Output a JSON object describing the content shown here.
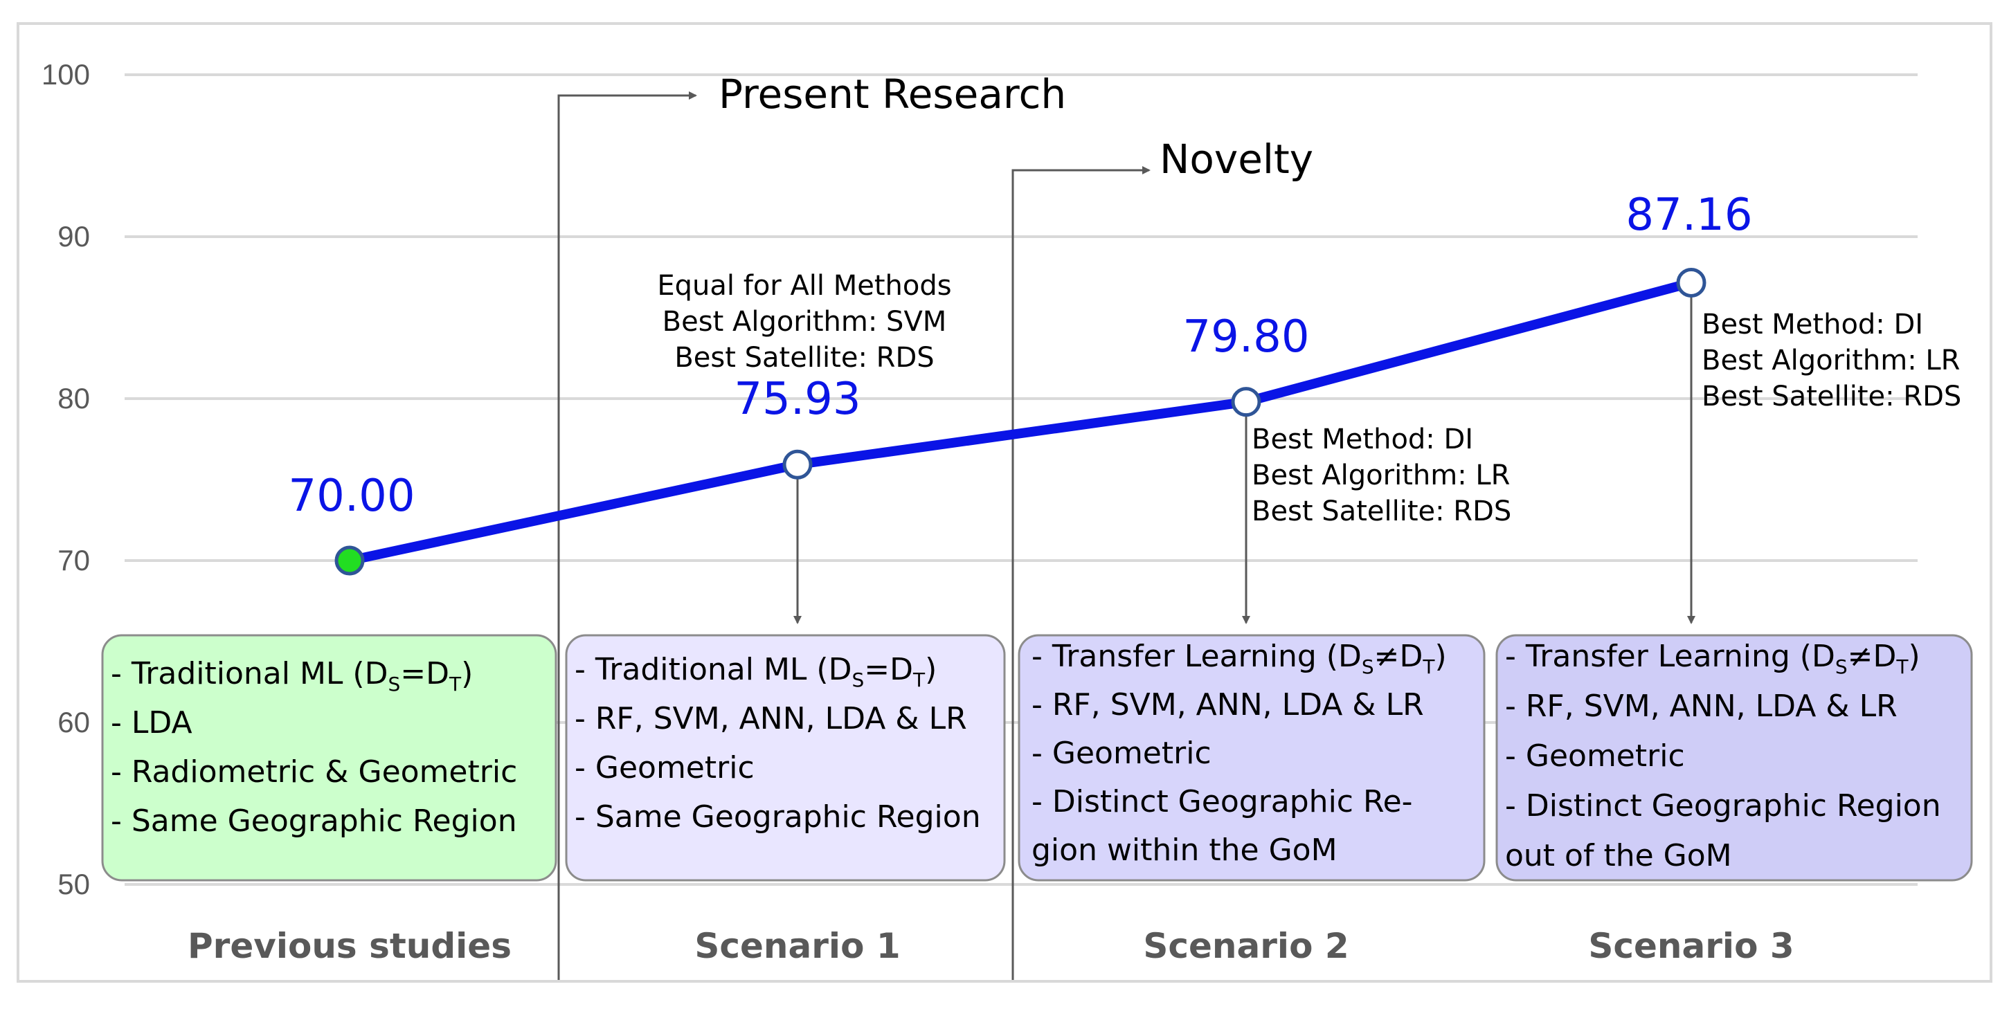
{
  "chart_data": {
    "type": "line",
    "categories": [
      "Previous studies",
      "Scenario 1",
      "Scenario 2",
      "Scenario 3"
    ],
    "values": [
      70.0,
      75.93,
      79.8,
      87.16
    ],
    "data_labels": [
      "70.00",
      "75.93",
      "79.80",
      "87.16"
    ],
    "yticks": [
      "100",
      "90",
      "80",
      "70",
      "60",
      "50"
    ],
    "ylim": [
      50,
      100
    ],
    "grid": true,
    "colors": {
      "line": "#0a14e6",
      "first_marker_fill": "#22dd22",
      "marker_fill": "#ffffff"
    },
    "callouts": [
      {
        "label": "Present Research"
      },
      {
        "label": "Novelty"
      }
    ],
    "annotations": [
      {
        "lines": [
          "Equal for All Methods",
          "Best Algorithm: SVM",
          "Best Satellite: RDS"
        ]
      },
      {
        "lines": [
          "Best Method: DI",
          "Best Algorithm: LR",
          "Best Satellite: RDS"
        ]
      },
      {
        "lines": [
          "Best Method: DI",
          "Best Algorithm: LR",
          "Best Satellite: RDS"
        ]
      }
    ],
    "boxes": [
      {
        "fill": "#ccffcc",
        "lines": [
          [
            [
              "- Traditional ML (D",
              ""
            ],
            [
              "S",
              "sub"
            ],
            [
              "=D",
              ""
            ],
            [
              "T",
              "sub"
            ],
            [
              ")",
              ""
            ]
          ],
          [
            [
              "- LDA",
              ""
            ]
          ],
          [
            [
              "- Radiometric & Geometric",
              ""
            ]
          ],
          [
            [
              "- Same Geographic Region",
              ""
            ]
          ]
        ]
      },
      {
        "fill": "#e9e6ff",
        "lines": [
          [
            [
              "- Traditional ML (D",
              ""
            ],
            [
              "S",
              "sub"
            ],
            [
              "=D",
              ""
            ],
            [
              "T",
              "sub"
            ],
            [
              ")",
              ""
            ]
          ],
          [
            [
              "- RF, SVM, ANN, LDA & LR",
              ""
            ]
          ],
          [
            [
              "- Geometric",
              ""
            ]
          ],
          [
            [
              "- Same Geographic Region",
              ""
            ]
          ]
        ]
      },
      {
        "fill": "#d7d5fb",
        "lines": [
          [
            [
              "- Transfer Learning (D",
              ""
            ],
            [
              "S",
              "sub"
            ],
            [
              "≠D",
              ""
            ],
            [
              "T",
              "sub"
            ],
            [
              ")",
              ""
            ]
          ],
          [
            [
              "- RF, SVM, ANN, LDA & LR",
              ""
            ]
          ],
          [
            [
              "- Geometric",
              ""
            ]
          ],
          [
            [
              "-  Distinct  Geographic  Re-",
              ""
            ]
          ],
          [
            [
              "gion within the GoM",
              ""
            ]
          ]
        ]
      },
      {
        "fill": "#cfcdf7",
        "lines": [
          [
            [
              "- Transfer Learning (D",
              ""
            ],
            [
              "S",
              "sub"
            ],
            [
              "≠D",
              ""
            ],
            [
              "T",
              "sub"
            ],
            [
              ")",
              ""
            ]
          ],
          [
            [
              "- RF, SVM, ANN, LDA & LR",
              ""
            ]
          ],
          [
            [
              "- Geometric",
              ""
            ]
          ],
          [
            [
              "- Distinct Geographic Region",
              ""
            ]
          ],
          [
            [
              "out of the GoM",
              ""
            ]
          ]
        ]
      }
    ]
  }
}
